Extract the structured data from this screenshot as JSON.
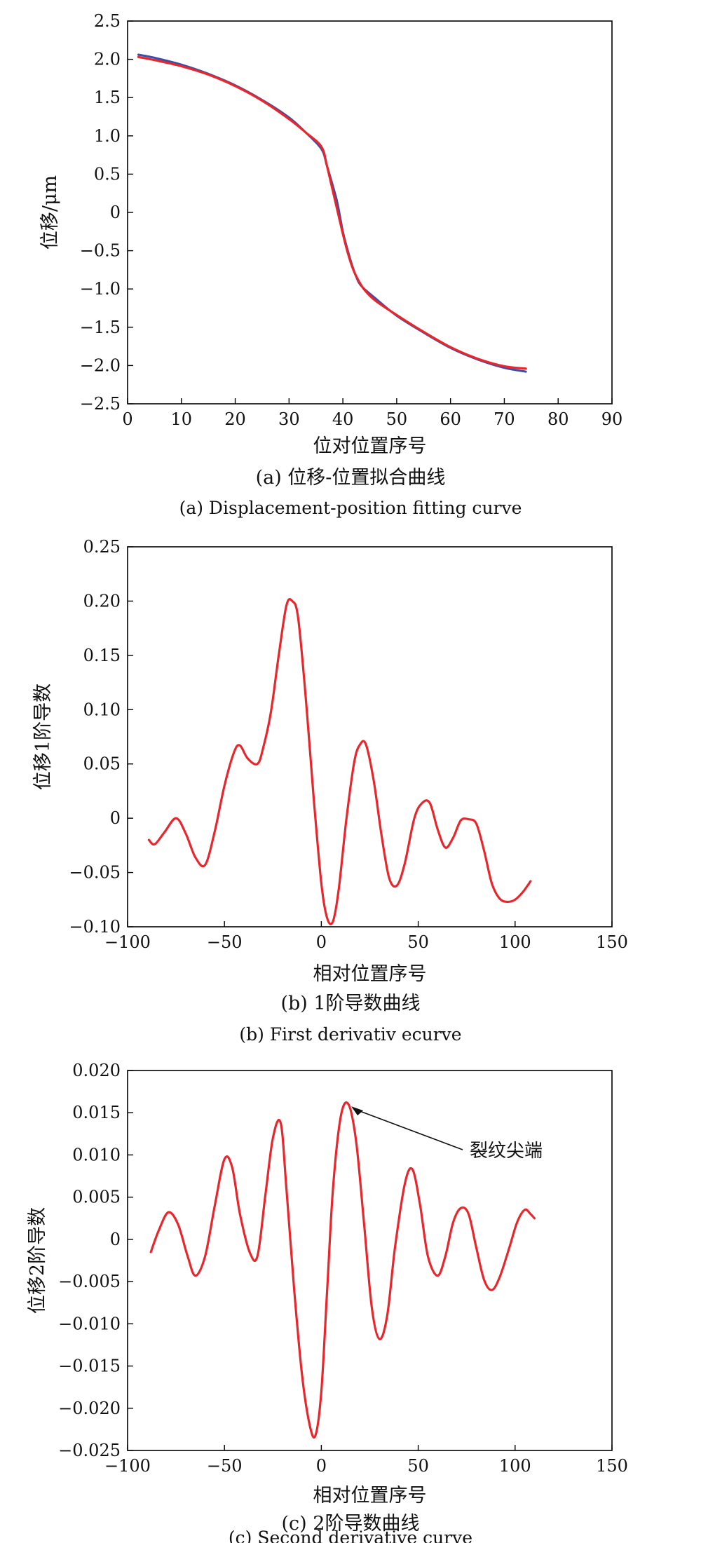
{
  "colors": {
    "red": "#e8262b",
    "blue": "#3a4fa8",
    "frame": "#000000"
  },
  "chart_data": [
    {
      "type": "line",
      "caption_cn": "(a) 位移-位置拟合曲线",
      "caption_en": "(a) Displacement-position fitting curve",
      "xlabel": "位对位置序号",
      "ylabel": "位移/μm",
      "xlim": [
        0,
        90
      ],
      "ylim": [
        -2.5,
        2.5
      ],
      "xticks": [
        "0",
        "10",
        "20",
        "30",
        "40",
        "50",
        "60",
        "70",
        "80",
        "90"
      ],
      "yticks": [
        "2.5",
        "2.0",
        "1.5",
        "1.0",
        "0.5",
        "0",
        "−0.5",
        "−1.0",
        "−1.5",
        "−2.0",
        "−2.5"
      ],
      "grid": false,
      "series": [
        {
          "color": "#3a4fa8",
          "x": [
            2,
            5,
            10,
            15,
            20,
            25,
            30,
            33,
            36,
            37,
            38,
            39,
            40,
            41,
            42,
            43,
            44,
            46,
            50,
            55,
            60,
            65,
            70,
            74
          ],
          "y": [
            2.06,
            2.02,
            1.93,
            1.81,
            1.66,
            1.47,
            1.24,
            1.05,
            0.83,
            0.62,
            0.38,
            0.12,
            -0.25,
            -0.52,
            -0.75,
            -0.92,
            -1.0,
            -1.12,
            -1.35,
            -1.57,
            -1.77,
            -1.92,
            -2.03,
            -2.08
          ]
        },
        {
          "color": "#e8262b",
          "x": [
            2,
            5,
            10,
            15,
            20,
            25,
            30,
            33,
            36,
            37,
            38,
            39,
            40,
            41,
            42,
            43,
            44,
            46,
            50,
            55,
            60,
            65,
            70,
            74
          ],
          "y": [
            2.03,
            1.99,
            1.91,
            1.8,
            1.65,
            1.46,
            1.22,
            1.05,
            0.86,
            0.62,
            0.32,
            0.02,
            -0.28,
            -0.55,
            -0.76,
            -0.9,
            -1.01,
            -1.15,
            -1.34,
            -1.56,
            -1.76,
            -1.91,
            -2.01,
            -2.04
          ]
        }
      ]
    },
    {
      "type": "line",
      "caption_cn": "(b) 1阶导数曲线",
      "caption_en": "(b) First derivativ ecurve",
      "xlabel": "相对位置序号",
      "ylabel": "位移1阶导数",
      "xlim": [
        -100,
        150
      ],
      "ylim": [
        -0.1,
        0.25
      ],
      "xticks": [
        "−100",
        "−50",
        "0",
        "50",
        "100",
        "150"
      ],
      "yticks": [
        "0.25",
        "0.20",
        "0.15",
        "0.10",
        "0.05",
        "0",
        "−0.05",
        "−0.10"
      ],
      "grid": false,
      "series": [
        {
          "color": "#e8262b",
          "x": [
            -89,
            -86,
            -81,
            -75,
            -70,
            -65,
            -60,
            -55,
            -50,
            -45,
            -42,
            -38,
            -33,
            -30,
            -26,
            -22,
            -18,
            -15,
            -12,
            -8,
            -4,
            0,
            3,
            6,
            9,
            13,
            17,
            20,
            23,
            27,
            31,
            35,
            39,
            43,
            48,
            52,
            56,
            60,
            64,
            68,
            72,
            76,
            80,
            84,
            88,
            92,
            96,
            100,
            104,
            108
          ],
          "y": [
            -0.02,
            -0.024,
            -0.013,
            0.0,
            -0.014,
            -0.036,
            -0.043,
            -0.012,
            0.03,
            0.061,
            0.067,
            0.055,
            0.05,
            0.065,
            0.098,
            0.15,
            0.196,
            0.2,
            0.185,
            0.11,
            0.02,
            -0.06,
            -0.092,
            -0.095,
            -0.065,
            0.0,
            0.052,
            0.068,
            0.068,
            0.035,
            -0.015,
            -0.055,
            -0.062,
            -0.042,
            0.0,
            0.014,
            0.014,
            -0.01,
            -0.027,
            -0.018,
            -0.002,
            -0.001,
            -0.005,
            -0.03,
            -0.06,
            -0.074,
            -0.077,
            -0.075,
            -0.068,
            -0.058
          ]
        }
      ]
    },
    {
      "type": "line",
      "caption_cn": "(c) 2阶导数曲线",
      "caption_en": "(c) Second derivative curve",
      "xlabel": "相对位置序号",
      "ylabel": "位移2阶导数",
      "xlim": [
        -100,
        150
      ],
      "ylim": [
        -0.025,
        0.02
      ],
      "xticks": [
        "−100",
        "−50",
        "0",
        "50",
        "100",
        "150"
      ],
      "yticks": [
        "0.020",
        "0.015",
        "0.010",
        "0.005",
        "0",
        "−0.005",
        "−0.010",
        "−0.015",
        "−0.020",
        "−0.025"
      ],
      "grid": false,
      "annotation": {
        "text": "裂纹尖端",
        "target_x": 14,
        "target_y": 0.016
      },
      "series": [
        {
          "color": "#e8262b",
          "x": [
            -88,
            -84,
            -79,
            -74,
            -69,
            -65,
            -60,
            -55,
            -50,
            -46,
            -42,
            -37,
            -33,
            -29,
            -25,
            -21,
            -18,
            -14,
            -10,
            -6,
            -3,
            0,
            3,
            6,
            10,
            14,
            18,
            22,
            26,
            30,
            34,
            38,
            43,
            47,
            51,
            55,
            60,
            64,
            68,
            72,
            76,
            80,
            84,
            88,
            92,
            97,
            101,
            105,
            108,
            110
          ],
          "y": [
            -0.0015,
            0.001,
            0.0032,
            0.0018,
            -0.002,
            -0.0043,
            -0.002,
            0.004,
            0.0095,
            0.0085,
            0.003,
            -0.0015,
            -0.002,
            0.005,
            0.012,
            0.0138,
            0.006,
            -0.006,
            -0.016,
            -0.022,
            -0.0232,
            -0.018,
            -0.006,
            0.006,
            0.0145,
            0.016,
            0.0115,
            0.002,
            -0.008,
            -0.0118,
            -0.009,
            -0.001,
            0.0065,
            0.0083,
            0.004,
            -0.002,
            -0.0043,
            -0.002,
            0.002,
            0.0037,
            0.003,
            -0.001,
            -0.0048,
            -0.006,
            -0.0045,
            -0.001,
            0.002,
            0.0035,
            0.003,
            0.0025
          ]
        }
      ]
    }
  ]
}
